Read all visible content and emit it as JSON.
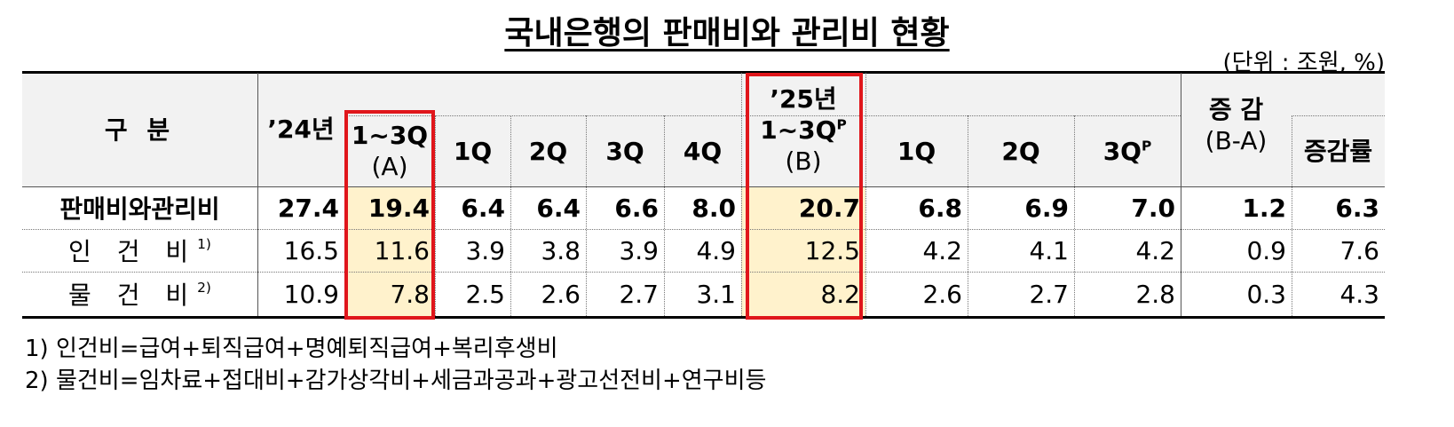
{
  "title": "국내은행의 판매비와 관리비 현황",
  "unit": "(단위 : 조원, %)",
  "table": {
    "header": {
      "category": "구 분",
      "y24": "’24년",
      "a": {
        "line1": "1~3Q",
        "line2": "(A)"
      },
      "q24": [
        "1Q",
        "2Q",
        "3Q",
        "4Q"
      ],
      "b": {
        "line1": "’25년",
        "line2": "1~3Q",
        "sup": "P",
        "line3": "(B)"
      },
      "q25": [
        {
          "text": "1Q"
        },
        {
          "text": "2Q"
        },
        {
          "text": "3Q",
          "sup": "P"
        }
      ],
      "change": {
        "line1": "증 감",
        "line2": "(B-A)"
      },
      "rate": "증감률"
    },
    "rows": [
      {
        "label": "판매비와관리비",
        "cells": [
          "27.4",
          "19.4",
          "6.4",
          "6.4",
          "6.6",
          "8.0",
          "20.7",
          "6.8",
          "6.9",
          "7.0",
          "1.2",
          "6.3"
        ]
      },
      {
        "label": "인 건 비",
        "note": "1)",
        "cells": [
          "16.5",
          "11.6",
          "3.9",
          "3.8",
          "3.9",
          "4.9",
          "12.5",
          "4.2",
          "4.1",
          "4.2",
          "0.9",
          "7.6"
        ]
      },
      {
        "label": "물 건 비",
        "note": "2)",
        "cells": [
          "10.9",
          "7.8",
          "2.5",
          "2.6",
          "2.7",
          "3.1",
          "8.2",
          "2.6",
          "2.7",
          "2.8",
          "0.3",
          "4.3"
        ]
      }
    ]
  },
  "footnotes": [
    "1) 인건비=급여+퇴직급여+명예퇴직급여+복리후생비",
    "2) 물건비=임차료+접대비+감가상각비+세금과공과+광고선전비+연구비등"
  ]
}
